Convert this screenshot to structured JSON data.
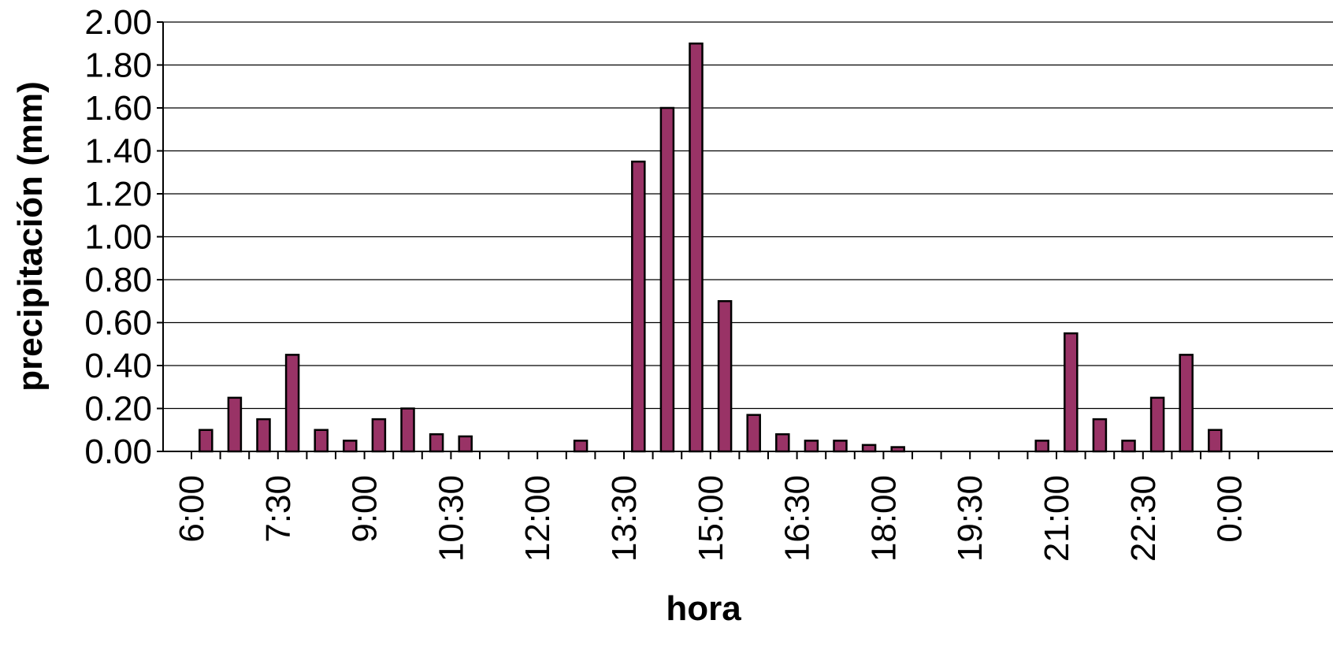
{
  "chart_data": {
    "type": "bar",
    "title": "",
    "xlabel": "hora",
    "ylabel": "precipitación (mm)",
    "ylim": [
      0,
      2.0
    ],
    "y_ticks": [
      "0.00",
      "0.20",
      "0.40",
      "0.60",
      "0.80",
      "1.00",
      "1.20",
      "1.40",
      "1.60",
      "1.80",
      "2.00"
    ],
    "x_tick_labels": [
      "6:00",
      "7:30",
      "9:00",
      "10:30",
      "12:00",
      "13:30",
      "15:00",
      "16:30",
      "18:00",
      "19:30",
      "21:00",
      "22:30",
      "0:00"
    ],
    "categories": [
      "6:00",
      "6:30",
      "7:00",
      "7:30",
      "8:00",
      "8:30",
      "9:00",
      "9:30",
      "10:00",
      "10:30",
      "11:00",
      "11:30",
      "12:00",
      "12:30",
      "13:00",
      "13:30",
      "14:00",
      "14:30",
      "15:00",
      "15:30",
      "16:00",
      "16:30",
      "17:00",
      "17:30",
      "18:00",
      "18:30",
      "19:00",
      "19:30",
      "20:00",
      "20:30",
      "21:00",
      "21:30",
      "22:00",
      "22:30",
      "23:00",
      "23:30",
      "0:00"
    ],
    "values": [
      0.1,
      0.25,
      0.15,
      0.45,
      0.1,
      0.05,
      0.15,
      0.2,
      0.08,
      0.07,
      0,
      0,
      0,
      0.05,
      0,
      1.35,
      1.6,
      1.9,
      0.7,
      0.17,
      0.08,
      0.05,
      0.05,
      0.03,
      0.02,
      0,
      0,
      0,
      0,
      0.05,
      0.55,
      0.15,
      0.05,
      0.25,
      0.45,
      0.1,
      0
    ],
    "bar_color": "#993366",
    "grid": true,
    "legend": "none"
  }
}
